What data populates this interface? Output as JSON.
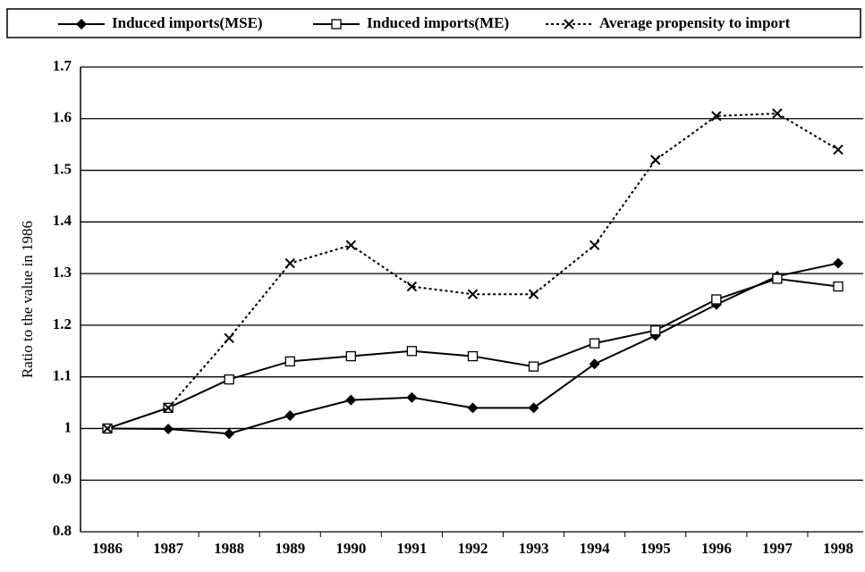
{
  "chart_data": {
    "type": "line",
    "y_label": "Ratio to the value in 1986",
    "categories": [
      "1986",
      "1987",
      "1988",
      "1989",
      "1990",
      "1991",
      "1992",
      "1993",
      "1994",
      "1995",
      "1996",
      "1997",
      "1998"
    ],
    "ylim": [
      0.8,
      1.7
    ],
    "yticks": [
      0.8,
      0.9,
      1,
      1.1,
      1.2,
      1.3,
      1.4,
      1.5,
      1.6,
      1.7
    ],
    "grid": true,
    "legend": "top",
    "series": [
      {
        "name": "Induced imports(MSE)",
        "color": "#000000",
        "marker": "diamond",
        "dashed": false,
        "values": [
          1.0,
          0.999,
          0.99,
          1.025,
          1.055,
          1.06,
          1.04,
          1.04,
          1.125,
          1.18,
          1.24,
          1.295,
          1.32
        ]
      },
      {
        "name": "Induced imports(ME)",
        "color": "#000000",
        "marker": "square",
        "dashed": false,
        "values": [
          1.0,
          1.04,
          1.095,
          1.13,
          1.14,
          1.15,
          1.14,
          1.12,
          1.165,
          1.19,
          1.25,
          1.29,
          1.275
        ]
      },
      {
        "name": "Average propensity to import",
        "color": "#000000",
        "marker": "cross",
        "dashed": true,
        "values": [
          1.0,
          1.04,
          1.175,
          1.32,
          1.355,
          1.275,
          1.26,
          1.26,
          1.355,
          1.52,
          1.605,
          1.61,
          1.54
        ]
      }
    ]
  }
}
